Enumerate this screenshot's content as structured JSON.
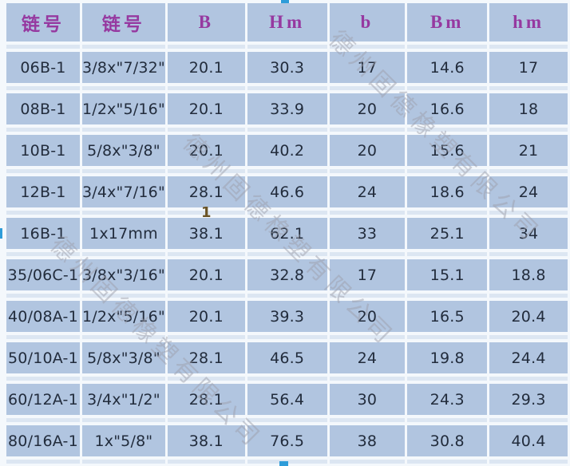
{
  "chart_data": {
    "type": "table",
    "headers": [
      "链号",
      "链号",
      "B",
      "Hm",
      "b",
      "Bm",
      "hm"
    ],
    "rows": [
      [
        "06B-1",
        "3/8x\"7/32\"",
        "20.1",
        "30.3",
        "17",
        "14.6",
        "17"
      ],
      [
        "08B-1",
        "1/2x\"5/16\"",
        "20.1",
        "33.9",
        "20",
        "16.6",
        "18"
      ],
      [
        "10B-1",
        "5/8x\"3/8\"",
        "20.1",
        "40.2",
        "20",
        "15.6",
        "21"
      ],
      [
        "12B-1",
        "3/4x\"7/16\"",
        "28.1",
        "46.6",
        "24",
        "18.6",
        "24"
      ],
      [
        "16B-1",
        "1x17mm",
        "38.1",
        "62.1",
        "33",
        "25.1",
        "34"
      ],
      [
        "35/06C-1",
        "3/8x\"3/16\"",
        "20.1",
        "32.8",
        "17",
        "15.1",
        "18.8"
      ],
      [
        "40/08A-1",
        "1/2x\"5/16\"",
        "20.1",
        "39.3",
        "20",
        "16.5",
        "20.4"
      ],
      [
        "50/10A-1",
        "5/8x\"3/8\"",
        "28.1",
        "46.5",
        "24",
        "19.8",
        "24.4"
      ],
      [
        "60/12A-1",
        "3/4x\"1/2\"",
        "28.1",
        "56.4",
        "30",
        "24.3",
        "29.3"
      ],
      [
        "80/16A-1",
        "1x\"5/8\"",
        "38.1",
        "76.5",
        "38",
        "30.8",
        "40.4"
      ]
    ],
    "stray_cell_value": "1",
    "stray_cell_after_row_index": 3,
    "stray_cell_column_index": 2,
    "layout_hints": {
      "grid": "white gaps between all cells",
      "spacer_bands_between_rows": true
    }
  },
  "watermark": {
    "text": "德州固德橡塑有限公司"
  },
  "selection_handles": [
    "top-center",
    "left-middle",
    "bottom-center"
  ],
  "colors": {
    "row_bg": "#b1c5e0",
    "band_bg": "#dce6f2",
    "grid_bg": "#f4f8fc",
    "header_text": "#9639a0",
    "cell_text": "#222c3c",
    "watermark_text": "rgba(158,160,172,0.5)",
    "handle": "#2e9cd9",
    "stray_text": "#6a5426"
  }
}
